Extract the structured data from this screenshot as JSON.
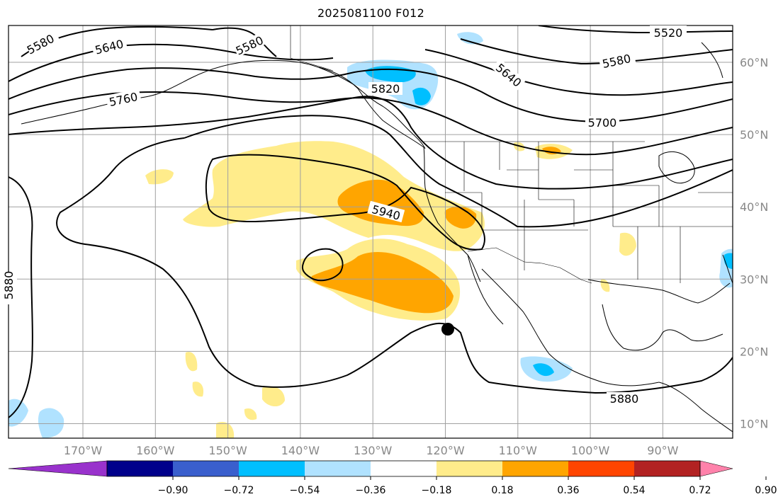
{
  "title": "2025081100 F012",
  "lon_labels": [
    "170°W",
    "160°W",
    "150°W",
    "140°W",
    "130°W",
    "120°W",
    "110°W",
    "100°W",
    "90°W"
  ],
  "lat_labels": [
    "60°N",
    "50°N",
    "40°N",
    "30°N",
    "20°N",
    "10°N"
  ],
  "contour_labels": [
    "5520",
    "5580",
    "5580",
    "5580",
    "5640",
    "5640",
    "5700",
    "5760",
    "5820",
    "5880",
    "5880",
    "5940"
  ],
  "colorbar": {
    "ticks": [
      "−0.90",
      "−0.72",
      "−0.54",
      "−0.36",
      "−0.18",
      "0.18",
      "0.36",
      "0.54",
      "0.72",
      "0.90"
    ],
    "colors": [
      "#9932cc",
      "#00008b",
      "#3a5fcd",
      "#00bfff",
      "#b0e2ff",
      "#ffffff",
      "#ffec8b",
      "#ffa500",
      "#ff4500",
      "#b22222",
      "#ff82ab"
    ],
    "extend": "both"
  },
  "colors": {
    "light_yellow": "#ffec8b",
    "orange": "#ffa500",
    "light_blue": "#b0e2ff",
    "deep_sky_blue": "#00bfff",
    "grid": "#a0a0a0",
    "axis_label": "#888888"
  },
  "map": {
    "projection": "cylindrical",
    "lon_range": [
      -180,
      -80
    ],
    "lat_range": [
      8,
      65
    ],
    "gridlines": true,
    "marker": "black-dot"
  }
}
